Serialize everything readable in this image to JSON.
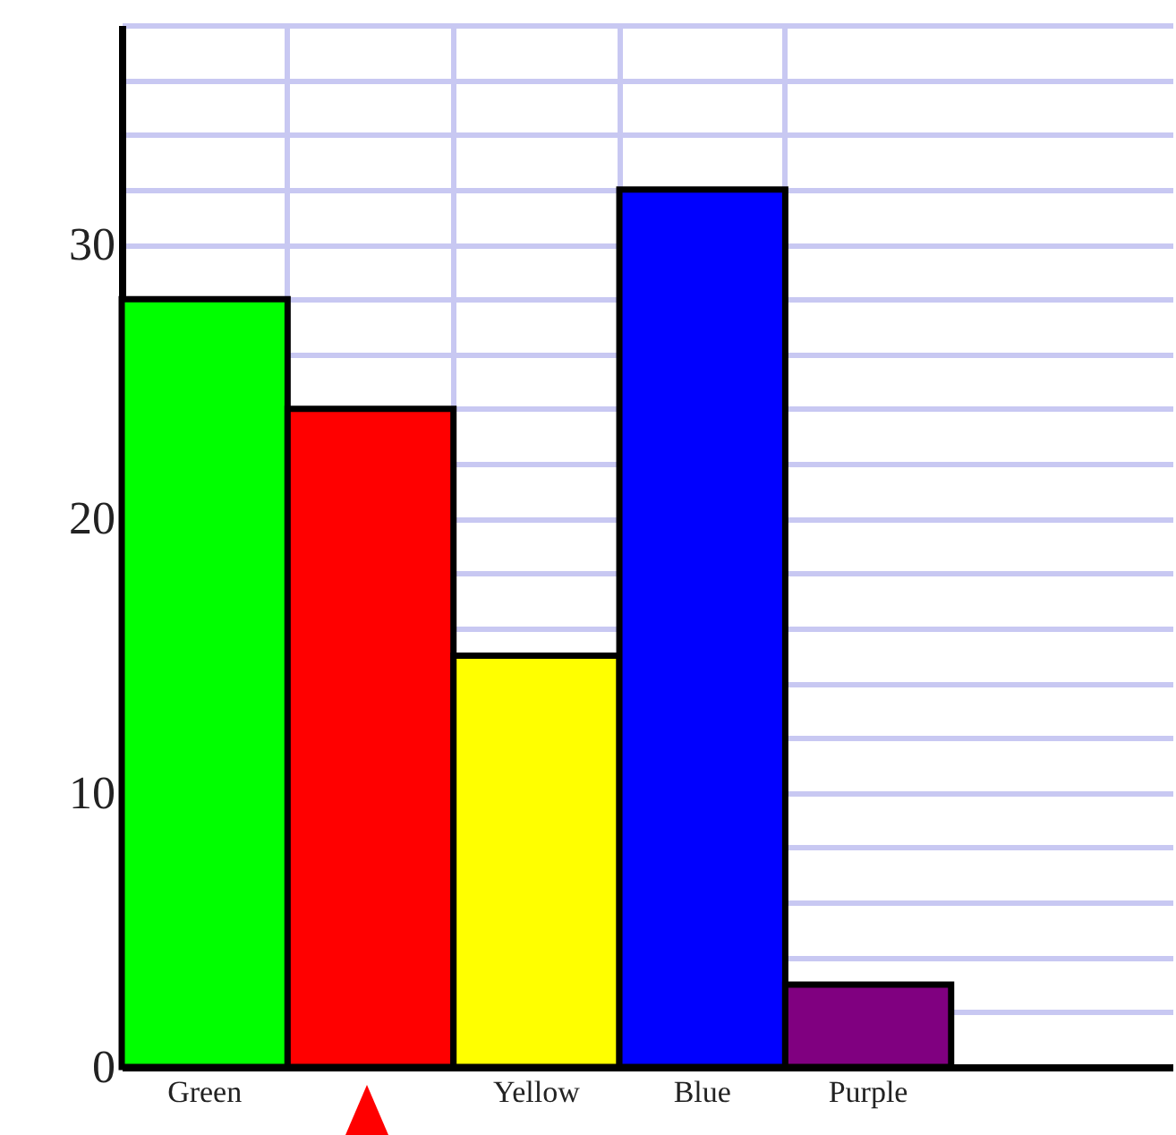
{
  "chart_data": {
    "type": "bar",
    "categories": [
      "Green",
      null,
      "Yellow",
      "Blue",
      "Purple"
    ],
    "values": [
      28,
      24,
      15,
      32,
      3
    ],
    "colors": [
      "#00ff00",
      "#ff0000",
      "#ffff00",
      "#0000ff",
      "#800080"
    ],
    "ylim": [
      0,
      38
    ],
    "yticks": [
      0,
      {
        "value": 2,
        "label": null
      },
      {
        "value": 4,
        "label": null
      },
      {
        "value": 6,
        "label": null
      },
      {
        "value": 8,
        "label": null
      },
      10,
      {
        "value": 12,
        "label": null
      },
      {
        "value": 14,
        "label": null
      },
      {
        "value": 16,
        "label": null
      },
      {
        "value": 18,
        "label": null
      },
      20,
      {
        "value": 22,
        "label": null
      },
      {
        "value": 24,
        "label": null
      },
      {
        "value": 26,
        "label": null
      },
      {
        "value": 28,
        "label": null
      },
      30,
      {
        "value": 32,
        "label": null
      },
      {
        "value": 34,
        "label": null
      },
      {
        "value": 36,
        "label": null
      },
      {
        "value": 38,
        "label": null
      }
    ],
    "grid": true
  }
}
